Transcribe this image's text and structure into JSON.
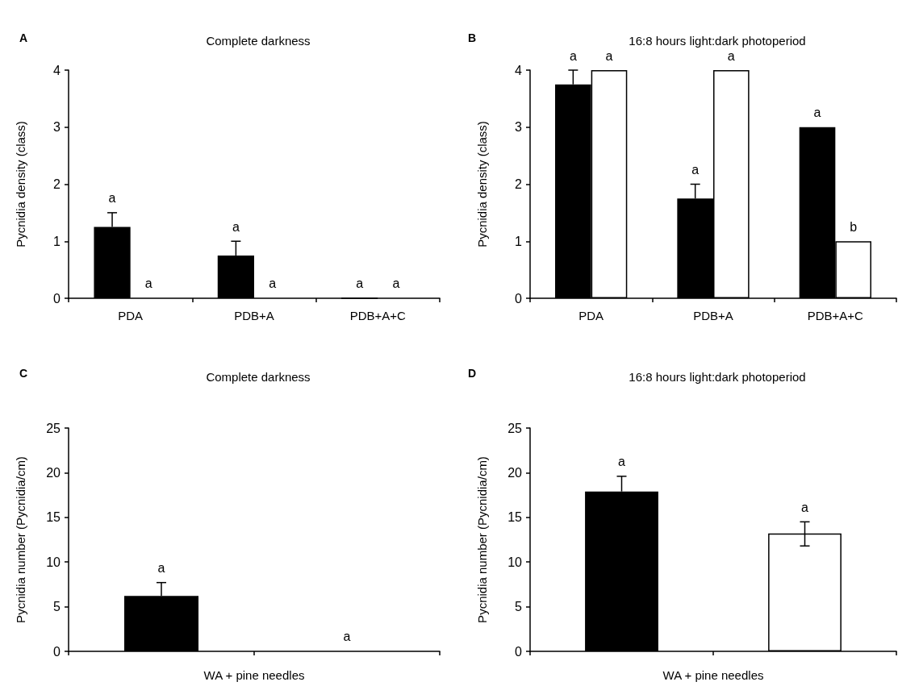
{
  "chart_data": [
    {
      "type": "bar",
      "title": "Complete darkness",
      "ylabel": "Pycnidia density (class)",
      "categories": [
        "PDA",
        "PDB+A",
        "PDB+A+C"
      ],
      "annotations": [
        "A"
      ],
      "ylim": [
        0,
        4
      ],
      "yticks": [
        0,
        1,
        2,
        3,
        4
      ],
      "grid": false,
      "series": [
        {
          "color": "#000000",
          "values": [
            1.25,
            0.75,
            0
          ],
          "errors": [
            [
              1.25,
              1.5
            ],
            [
              0.75,
              1
            ],
            null
          ],
          "value_labels": [
            "a",
            "a",
            "a"
          ]
        },
        {
          "color": "#ffffff",
          "values": [
            0,
            0,
            0
          ],
          "errors": [
            null,
            null,
            null
          ],
          "value_labels": [
            "a",
            "a",
            "a"
          ]
        }
      ]
    },
    {
      "type": "bar",
      "title": "16:8 hours light:dark photoperiod",
      "ylabel": "Pycnidia density (class)",
      "categories": [
        "PDA",
        "PDB+A",
        "PDB+A+C"
      ],
      "annotations": [
        "B"
      ],
      "ylim": [
        0,
        4
      ],
      "yticks": [
        0,
        1,
        2,
        3,
        4
      ],
      "grid": false,
      "series": [
        {
          "color": "#000000",
          "values": [
            3.75,
            1.75,
            3
          ],
          "errors": [
            [
              3.75,
              4
            ],
            [
              1.75,
              2
            ],
            null
          ],
          "value_labels": [
            "a",
            "a",
            "a"
          ]
        },
        {
          "color": "#ffffff",
          "values": [
            4,
            4,
            1
          ],
          "errors": [
            null,
            null,
            null
          ],
          "value_labels": [
            "a",
            "a",
            "b"
          ]
        }
      ]
    },
    {
      "type": "bar",
      "title": "Complete darkness",
      "ylabel": "Pycnidia number (Pycnidia/cm)",
      "xlabel": "WA + pine needles",
      "categories": [
        null,
        null
      ],
      "annotations": [
        "C"
      ],
      "ylim": [
        0,
        25
      ],
      "yticks": [
        0,
        5,
        10,
        15,
        20,
        25
      ],
      "grid": false,
      "series": [
        {
          "colors": [
            "#000000",
            "#ffffff"
          ],
          "values": [
            6.2,
            0
          ],
          "errors": [
            [
              6.2,
              7.7
            ],
            null
          ],
          "value_labels": [
            "a",
            "a"
          ]
        }
      ]
    },
    {
      "type": "bar",
      "title": "16:8 hours light:dark photoperiod",
      "ylabel": "Pycnidia number (Pycnidia/cm)",
      "xlabel": "WA + pine needles",
      "categories": [
        null,
        null
      ],
      "annotations": [
        "D"
      ],
      "ylim": [
        0,
        25
      ],
      "yticks": [
        0,
        5,
        10,
        15,
        20,
        25
      ],
      "grid": false,
      "series": [
        {
          "colors": [
            "#000000",
            "#ffffff"
          ],
          "values": [
            17.9,
            13.2
          ],
          "errors": [
            [
              17.9,
              19.6
            ],
            [
              11.8,
              14.5
            ]
          ],
          "value_labels": [
            "a",
            "a"
          ]
        }
      ]
    }
  ]
}
